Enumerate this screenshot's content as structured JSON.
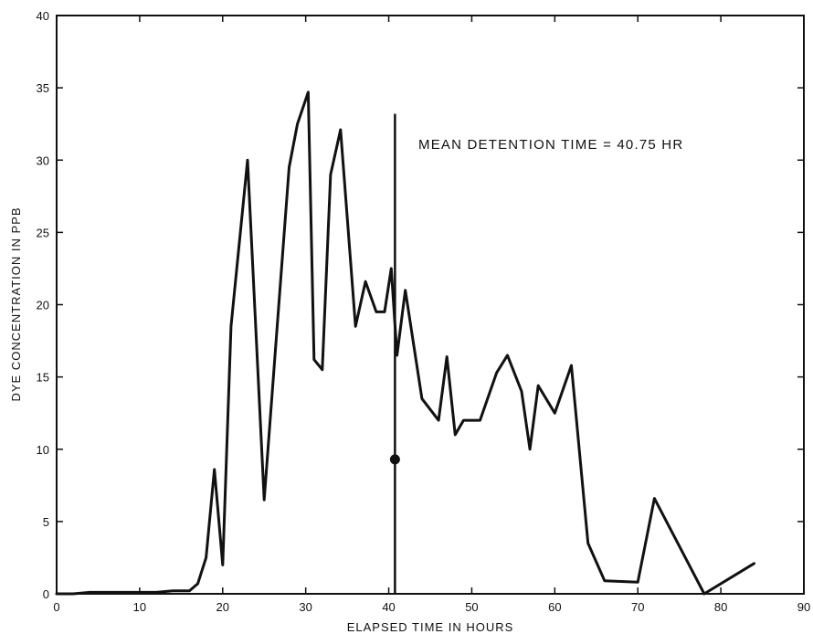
{
  "chart_data": {
    "type": "line",
    "title": "",
    "xlabel": "ELAPSED TIME IN HOURS",
    "ylabel": "DYE CONCENTRATION IN PPB",
    "xlim": [
      0,
      90
    ],
    "ylim": [
      0,
      40
    ],
    "xticks": [
      "0",
      "10",
      "20",
      "30",
      "40",
      "50",
      "60",
      "70",
      "80",
      "90"
    ],
    "yticks": [
      "0",
      "5",
      "10",
      "15",
      "20",
      "25",
      "30",
      "35",
      "40"
    ],
    "grid": false,
    "series": [
      {
        "x": [
          0,
          2,
          4,
          6,
          8,
          10,
          12,
          14,
          15,
          16,
          17,
          18,
          19,
          20,
          21,
          23,
          25,
          28,
          29,
          30.3,
          31,
          32,
          33,
          34.2,
          36,
          37.2,
          38.5,
          39.5,
          40.3,
          41,
          42,
          44,
          46,
          47,
          48,
          49,
          51,
          53,
          54.3,
          56,
          57,
          58,
          60,
          62,
          64,
          66,
          70,
          72,
          78,
          84
        ],
        "values": [
          0,
          0,
          0.1,
          0.1,
          0.1,
          0.1,
          0.1,
          0.2,
          0.2,
          0.2,
          0.7,
          2.5,
          8.6,
          2,
          18.5,
          30,
          6.5,
          29.5,
          32.5,
          34.7,
          16.2,
          15.5,
          29,
          32.1,
          18.5,
          21.6,
          19.5,
          19.5,
          22.5,
          16.5,
          21,
          13.5,
          12,
          16.4,
          11,
          12,
          12,
          15.3,
          16.5,
          14,
          10,
          14.4,
          12.5,
          15.8,
          3.5,
          0.9,
          0.8,
          6.6,
          0,
          2.1
        ]
      }
    ],
    "mean_line": {
      "x": 40.75,
      "y_top": 33.2,
      "marker_y": 9.3
    },
    "annotation": "MEAN DETENTION TIME = 40.75 HR"
  }
}
